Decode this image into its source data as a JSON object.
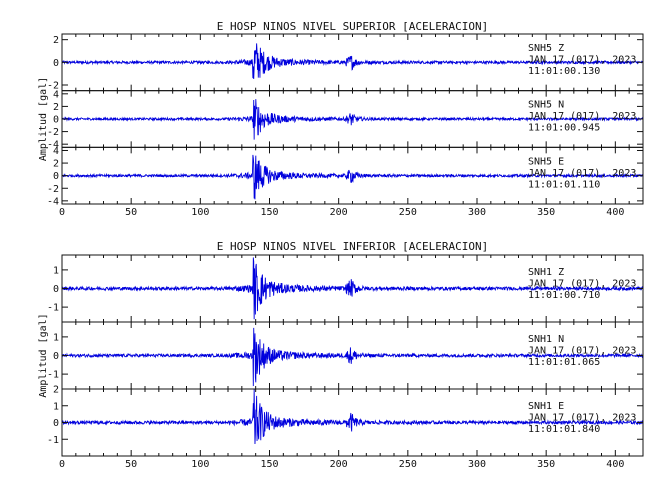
{
  "chart_data": [
    {
      "type": "line",
      "title": "E HOSP NINOS NIVEL SUPERIOR [ACELERACION]",
      "ylabel": "Amplitud [gal]",
      "xlabel": "",
      "xlim": [
        0,
        420
      ],
      "x_ticks": [
        0,
        50,
        100,
        150,
        200,
        250,
        300,
        350,
        400
      ],
      "series_color": "#0000dd",
      "traces": [
        {
          "station": "SNH5",
          "component": "Z",
          "date": "JAN 17 (017), 2023",
          "time": "11:01:00.130",
          "ylim": [
            -2.5,
            2.5
          ],
          "y_ticks": [
            -2,
            0,
            2
          ],
          "peak": 2.3,
          "event_start": 138,
          "second_burst": 208
        },
        {
          "station": "SNH5",
          "component": "N",
          "date": "JAN 17 (017), 2023",
          "time": "11:01:00.945",
          "ylim": [
            -4.5,
            4.5
          ],
          "y_ticks": [
            -4,
            -2,
            0,
            2,
            4
          ],
          "peak": 3.6,
          "event_start": 138,
          "second_burst": 208
        },
        {
          "station": "SNH5",
          "component": "E",
          "date": "JAN 17 (017), 2023",
          "time": "11:01:01.110",
          "ylim": [
            -4.5,
            4.5
          ],
          "y_ticks": [
            -4,
            -2,
            0,
            2,
            4
          ],
          "peak": 4.0,
          "event_start": 138,
          "second_burst": 208
        }
      ]
    },
    {
      "type": "line",
      "title": "E HOSP NINOS NIVEL INFERIOR [ACELERACION]",
      "ylabel": "Amplitud [gal]",
      "xlabel": "",
      "xlim": [
        0,
        420
      ],
      "x_ticks": [
        0,
        50,
        100,
        150,
        200,
        250,
        300,
        350,
        400
      ],
      "series_color": "#0000dd",
      "traces": [
        {
          "station": "SNH1",
          "component": "Z",
          "date": "JAN 17 (017), 2023",
          "time": "11:01:00.710",
          "ylim": [
            -1.8,
            1.8
          ],
          "y_ticks": [
            -1,
            0,
            1
          ],
          "peak": 1.7,
          "event_start": 138,
          "second_burst": 208
        },
        {
          "station": "SNH1",
          "component": "N",
          "date": "JAN 17 (017), 2023",
          "time": "11:01:01.065",
          "ylim": [
            -1.8,
            1.8
          ],
          "y_ticks": [
            -1,
            0,
            1
          ],
          "peak": 1.6,
          "event_start": 138,
          "second_burst": 208
        },
        {
          "station": "SNH1",
          "component": "E",
          "date": "JAN 17 (017), 2023",
          "time": "11:01:01.840",
          "ylim": [
            -2.0,
            2.0
          ],
          "y_ticks": [
            -1,
            0,
            1,
            2
          ],
          "peak": 1.9,
          "event_start": 138,
          "second_burst": 208
        }
      ]
    }
  ]
}
